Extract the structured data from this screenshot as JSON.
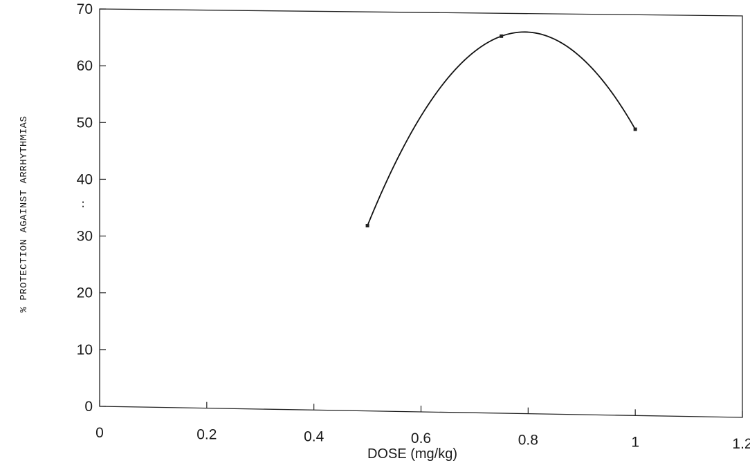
{
  "chart_data": {
    "type": "line",
    "title": "",
    "xlabel": "DOSE (mg/kg)",
    "ylabel": "% PROTECTION AGAINST ARRHYTHMIAS",
    "xlim": [
      0,
      1.2
    ],
    "ylim": [
      0,
      70
    ],
    "x_ticks": [
      "0",
      "0.2",
      "0.4",
      "0.6",
      "0.8",
      "1",
      "1.2"
    ],
    "y_ticks": [
      "0",
      "10",
      "20",
      "30",
      "40",
      "50",
      "60",
      "70"
    ],
    "x_tick_values": [
      0,
      0.2,
      0.4,
      0.6,
      0.8,
      1.0,
      1.2
    ],
    "y_tick_values": [
      0,
      10,
      20,
      30,
      40,
      50,
      60,
      70
    ],
    "grid": false,
    "legend": "none",
    "series": [
      {
        "x": [
          0.5,
          0.75,
          1.0
        ],
        "values": [
          32.5,
          66,
          50
        ],
        "color": "#111111",
        "smooth": true
      }
    ],
    "annotations": [
      ":"
    ]
  }
}
